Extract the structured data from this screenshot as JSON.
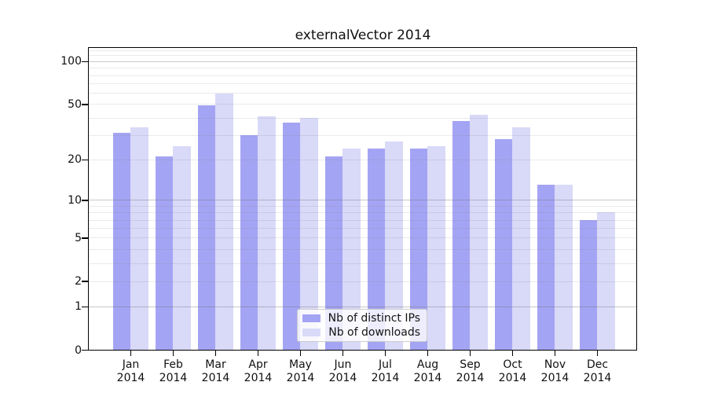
{
  "chart_data": {
    "type": "bar",
    "title": "externalVector 2014",
    "categories": [
      "Jan",
      "Feb",
      "Mar",
      "Apr",
      "May",
      "Jun",
      "Jul",
      "Aug",
      "Sep",
      "Oct",
      "Nov",
      "Dec"
    ],
    "category_year": "2014",
    "series": [
      {
        "name": "Nb of distinct IPs",
        "color": "#a4a4f4",
        "values": [
          31,
          21,
          49,
          30,
          37,
          21,
          24,
          24,
          38,
          28,
          13,
          7
        ]
      },
      {
        "name": "Nb of downloads",
        "color": "#d9d9f8",
        "values": [
          34,
          25,
          59,
          41,
          40,
          24,
          27,
          25,
          42,
          34,
          13,
          8
        ]
      }
    ],
    "yscale": "log10(1+x)",
    "ylim": [
      0,
      124
    ],
    "ytick_values": [
      100,
      50,
      20,
      10,
      5,
      2,
      1,
      0
    ],
    "ytick_labels": [
      "100",
      "50",
      "20",
      "10",
      "5",
      "2",
      "1",
      "0"
    ],
    "grid_major_values": [
      1,
      10,
      100
    ],
    "grid_minor_values": [
      2,
      3,
      4,
      5,
      6,
      7,
      8,
      9,
      20,
      30,
      40,
      50,
      60,
      70,
      80,
      90,
      110,
      120
    ],
    "grid": "on",
    "legend_position": "lower center",
    "xlabel": "",
    "ylabel": ""
  },
  "colors": {
    "background": "#ffffff",
    "spine": "#000000",
    "bar_distinct_ips": "#a4a4f4",
    "bar_downloads": "#d9d9f8",
    "grid_major": "#c6c6c6",
    "grid_minor": "#ebebeb",
    "text": "#111111"
  }
}
